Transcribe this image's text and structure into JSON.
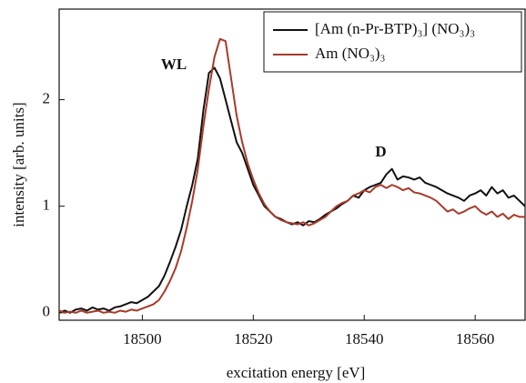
{
  "chart_data": {
    "type": "line",
    "xlabel": "excitation energy [eV]",
    "ylabel": "intensity [arb. units]",
    "x": [
      18485,
      18486,
      18487,
      18488,
      18489,
      18490,
      18491,
      18492,
      18493,
      18494,
      18495,
      18496,
      18497,
      18498,
      18499,
      18500,
      18501,
      18502,
      18503,
      18504,
      18505,
      18506,
      18507,
      18508,
      18509,
      18510,
      18511,
      18512,
      18513,
      18514,
      18515,
      18516,
      18517,
      18518,
      18519,
      18520,
      18521,
      18522,
      18523,
      18524,
      18525,
      18526,
      18527,
      18528,
      18529,
      18530,
      18531,
      18532,
      18533,
      18534,
      18535,
      18536,
      18537,
      18538,
      18539,
      18540,
      18541,
      18542,
      18543,
      18544,
      18545,
      18546,
      18547,
      18548,
      18549,
      18550,
      18551,
      18552,
      18553,
      18554,
      18555,
      18556,
      18557,
      18558,
      18559,
      18560,
      18561,
      18562,
      18563,
      18564,
      18565,
      18566,
      18567,
      18568,
      18569
    ],
    "series": [
      {
        "name": "[Am (n-Pr-BTP)₃] (NO₃)₃",
        "color": "#111111",
        "values": [
          0.0,
          0.02,
          0.0,
          0.03,
          0.04,
          0.02,
          0.05,
          0.03,
          0.04,
          0.02,
          0.05,
          0.06,
          0.08,
          0.1,
          0.09,
          0.12,
          0.15,
          0.2,
          0.25,
          0.35,
          0.48,
          0.62,
          0.78,
          1.0,
          1.2,
          1.45,
          1.9,
          2.25,
          2.3,
          2.2,
          2.0,
          1.8,
          1.6,
          1.5,
          1.35,
          1.2,
          1.1,
          1.0,
          0.95,
          0.9,
          0.88,
          0.85,
          0.83,
          0.85,
          0.82,
          0.86,
          0.85,
          0.88,
          0.92,
          0.95,
          0.98,
          1.02,
          1.05,
          1.1,
          1.08,
          1.15,
          1.18,
          1.2,
          1.22,
          1.3,
          1.35,
          1.25,
          1.28,
          1.27,
          1.25,
          1.27,
          1.22,
          1.2,
          1.18,
          1.15,
          1.12,
          1.1,
          1.08,
          1.05,
          1.1,
          1.12,
          1.15,
          1.1,
          1.18,
          1.12,
          1.15,
          1.08,
          1.1,
          1.05,
          1.0
        ]
      },
      {
        "name": "Am (NO₃)₃",
        "color": "#a83a2a",
        "values": [
          0.02,
          0.0,
          0.01,
          0.0,
          0.02,
          0.0,
          0.01,
          0.02,
          0.0,
          0.01,
          0.0,
          0.02,
          0.01,
          0.03,
          0.02,
          0.04,
          0.06,
          0.08,
          0.12,
          0.2,
          0.3,
          0.42,
          0.58,
          0.8,
          1.05,
          1.35,
          1.75,
          2.1,
          2.4,
          2.57,
          2.55,
          2.2,
          1.85,
          1.6,
          1.4,
          1.25,
          1.12,
          1.02,
          0.95,
          0.9,
          0.87,
          0.85,
          0.84,
          0.83,
          0.85,
          0.82,
          0.84,
          0.87,
          0.9,
          0.95,
          1.0,
          1.03,
          1.05,
          1.1,
          1.12,
          1.15,
          1.13,
          1.18,
          1.2,
          1.17,
          1.2,
          1.18,
          1.15,
          1.17,
          1.13,
          1.12,
          1.1,
          1.08,
          1.05,
          1.0,
          0.95,
          0.97,
          0.93,
          0.95,
          0.98,
          1.0,
          0.95,
          0.92,
          0.95,
          0.9,
          0.93,
          0.88,
          0.92,
          0.9,
          0.9
        ]
      }
    ],
    "annotations": [
      {
        "text": "WL",
        "x": 18508,
        "y": 2.32
      },
      {
        "text": "D",
        "x": 18544,
        "y": 1.5
      }
    ],
    "xlim": [
      18485,
      18569
    ],
    "xticks": [
      18500,
      18520,
      18540,
      18560
    ],
    "ylim": [
      -0.07,
      2.85
    ],
    "yticks": [
      0,
      1,
      2
    ],
    "legend": "upper right"
  }
}
